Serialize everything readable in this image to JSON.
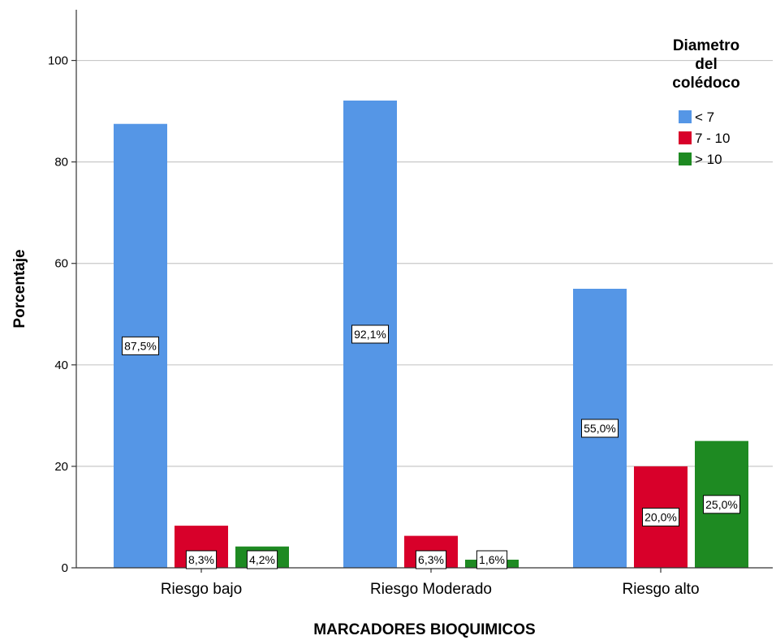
{
  "chart_data": {
    "type": "bar",
    "xlabel": "MARCADORES BIOQUIMICOS",
    "ylabel": "Porcentaje",
    "ylim": [
      0,
      110
    ],
    "yticks": [
      0,
      20,
      40,
      60,
      80,
      100
    ],
    "grid": true,
    "legend": {
      "title": [
        "Diametro",
        "del",
        "colédoco"
      ],
      "position": "top-right"
    },
    "categories": [
      "Riesgo bajo",
      "Riesgo Moderado",
      "Riesgo alto"
    ],
    "series": [
      {
        "name": "< 7",
        "color": "#5596e6",
        "values": [
          87.5,
          92.1,
          55.0
        ],
        "labels": [
          "87,5%",
          "92,1%",
          "55,0%"
        ]
      },
      {
        "name": "7 - 10",
        "color": "#d8002a",
        "values": [
          8.3,
          6.3,
          20.0
        ],
        "labels": [
          "8,3%",
          "6,3%",
          "20,0%"
        ]
      },
      {
        "name": "> 10",
        "color": "#1e8a22",
        "values": [
          4.2,
          1.6,
          25.0
        ],
        "labels": [
          "4,2%",
          "1,6%",
          "25,0%"
        ]
      }
    ]
  }
}
